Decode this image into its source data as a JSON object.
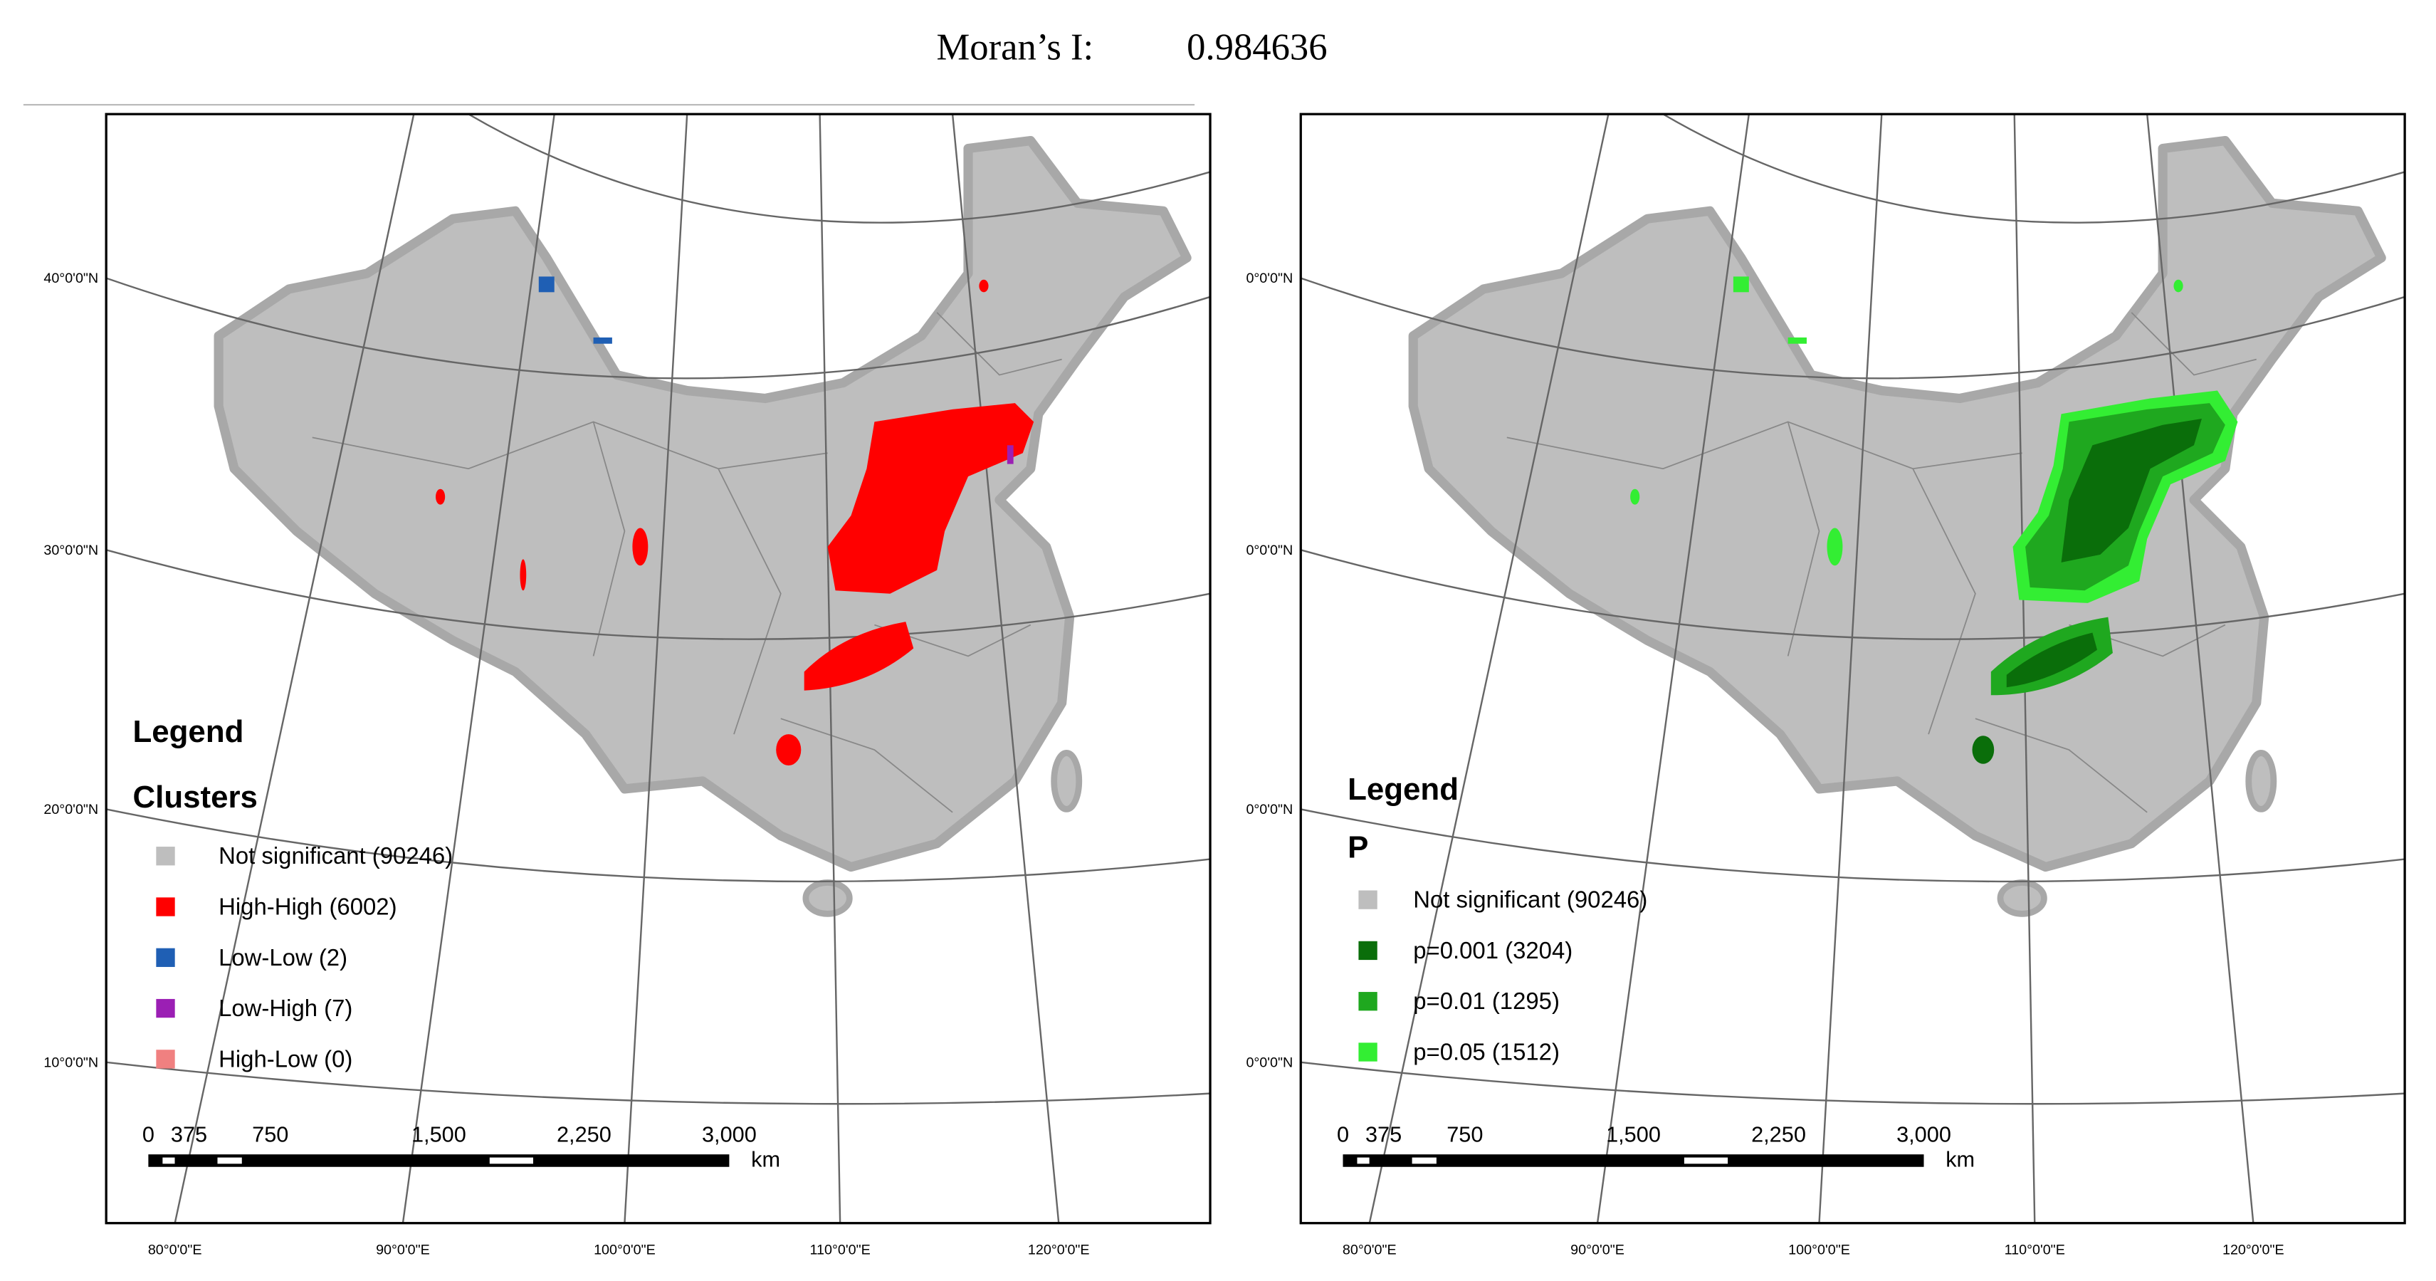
{
  "header": {
    "label": "Moran’s I:",
    "value": "0.984636"
  },
  "maps": [
    {
      "legend_title": "Legend",
      "legend_subtitle": "Clusters",
      "legend_items": [
        {
          "label": "Not significant (90246)",
          "color": "#bebebe"
        },
        {
          "label": "High-High (6002)",
          "color": "#ff0000"
        },
        {
          "label": "Low-Low (2)",
          "color": "#1f5fb4"
        },
        {
          "label": "Low-High (7)",
          "color": "#9b1fb4"
        },
        {
          "label": "High-Low (0)",
          "color": "#f08080"
        }
      ],
      "lat_labels": [
        "40°0'0\"N",
        "30°0'0\"N",
        "20°0'0\"N",
        "10°0'0\"N"
      ],
      "lon_labels": [
        "80°0'0\"E",
        "90°0'0\"E",
        "100°0'0\"E",
        "110°0'0\"E",
        "120°0'0\"E"
      ],
      "scale": {
        "ticks": [
          "0",
          "375",
          "750",
          "1,500",
          "2,250",
          "3,000"
        ],
        "unit": "km"
      }
    },
    {
      "legend_title": "Legend",
      "legend_subtitle": "P",
      "legend_items": [
        {
          "label": "Not significant (90246)",
          "color": "#bebebe"
        },
        {
          "label": "p=0.001 (3204)",
          "color": "#0a6e0a"
        },
        {
          "label": "p=0.01 (1295)",
          "color": "#1fa81f"
        },
        {
          "label": "p=0.05 (1512)",
          "color": "#33ee33"
        }
      ],
      "lat_labels": [
        "0°0'0\"N",
        "0°0'0\"N",
        "0°0'0\"N",
        "0°0'0\"N"
      ],
      "lon_labels": [
        "80°0'0\"E",
        "90°0'0\"E",
        "100°0'0\"E",
        "110°0'0\"E",
        "120°0'0\"E"
      ],
      "scale": {
        "ticks": [
          "0",
          "375",
          "750",
          "1,500",
          "2,250",
          "3,000"
        ],
        "unit": "km"
      }
    }
  ]
}
